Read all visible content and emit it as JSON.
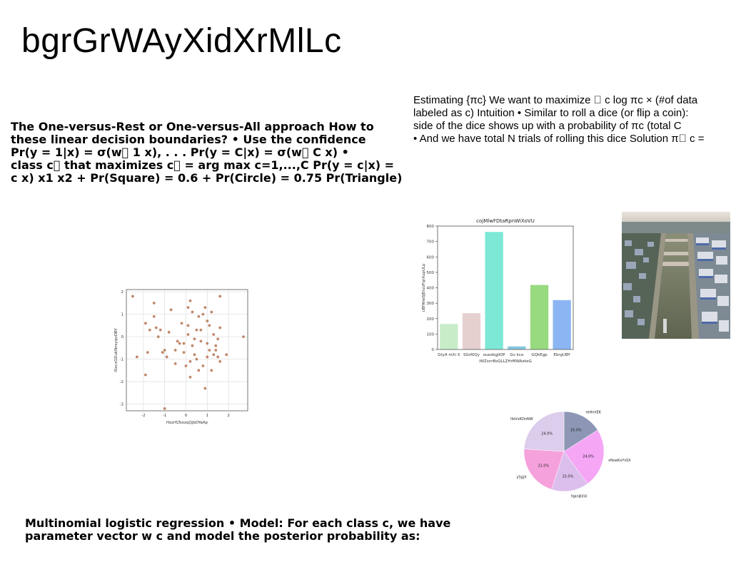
{
  "title": "bgrGrWAyXidXrMlLc",
  "left_block": {
    "lines": [
      "The One-versus-Rest or One-versus-All approach How to",
      "these linear decision boundaries? • Use the confidence",
      "Pr(y = 1|x) = σ(w⃞ 1 x), . . . Pr(y = C|x) = σ(w⃞ C x) •",
      "class c⃞ that maximizes c⃞ = arg max c=1,...,C Pr(y = c|x) =",
      "c x) x1 x2 + Pr(Square) = 0.6 + Pr(Circle) = 0.75 Pr(Triangle)"
    ]
  },
  "right_block": {
    "lines": [
      "Estimating {πc} We want to maximize ⃞ c log πc × (#of data",
      "labeled as c) Intuition • Similar to roll a dice (or flip a coin):",
      "side of the dice shows up with a probability of πc (total C",
      "• And we have total N trials of rolling this dice Solution π⃞ c ="
    ]
  },
  "bottom_block": {
    "lines": [
      "Multinomial logistic regression • Model: For each class c, we have",
      "parameter vector w c and model the posterior probability as:"
    ]
  },
  "chart_data": [
    {
      "type": "scatter",
      "xlabel": "HzzrfLTsozqQjbDYaAp",
      "ylabel": "lSecxGDukNnsyqvOBY",
      "xlim": [
        -2.8,
        2.9
      ],
      "ylim": [
        -3.3,
        2.1
      ],
      "xticks": [
        "-2",
        "-1",
        "0",
        "1",
        "2"
      ],
      "yticks": [
        "-3",
        "-2",
        "-1",
        "0",
        "1",
        "2"
      ],
      "grid": true,
      "color": "#c0876a",
      "points": [
        [
          -2.5,
          1.8
        ],
        [
          -2.3,
          -0.9
        ],
        [
          -1.9,
          -1.7
        ],
        [
          -1.9,
          0.6
        ],
        [
          -1.8,
          -0.7
        ],
        [
          -1.7,
          0.3
        ],
        [
          -1.5,
          1.5
        ],
        [
          -1.5,
          0.9
        ],
        [
          -1.4,
          0.4
        ],
        [
          -1.3,
          0.0
        ],
        [
          -1.2,
          0.3
        ],
        [
          -1.1,
          -0.7
        ],
        [
          -1.0,
          -0.6
        ],
        [
          -1.0,
          -3.2
        ],
        [
          -0.9,
          -0.9
        ],
        [
          -0.8,
          0.2
        ],
        [
          -0.7,
          1.2
        ],
        [
          -0.5,
          -0.6
        ],
        [
          -0.5,
          -1.2
        ],
        [
          -0.4,
          -0.2
        ],
        [
          -0.3,
          -0.3
        ],
        [
          -0.2,
          0.6
        ],
        [
          -0.1,
          -0.3
        ],
        [
          -0.1,
          -0.7
        ],
        [
          0.0,
          -1.3
        ],
        [
          0.1,
          1.3
        ],
        [
          0.1,
          0.5
        ],
        [
          0.1,
          0.1
        ],
        [
          0.2,
          -1.1
        ],
        [
          0.2,
          -1.8
        ],
        [
          0.2,
          1.6
        ],
        [
          0.3,
          1.1
        ],
        [
          0.3,
          -0.4
        ],
        [
          0.4,
          -0.1
        ],
        [
          0.4,
          -0.8
        ],
        [
          0.5,
          -1.0
        ],
        [
          0.5,
          0.3
        ],
        [
          0.6,
          -1.5
        ],
        [
          0.6,
          0.9
        ],
        [
          0.7,
          0.3
        ],
        [
          0.7,
          -0.2
        ],
        [
          0.8,
          1.0
        ],
        [
          0.8,
          -1.3
        ],
        [
          0.9,
          -2.3
        ],
        [
          0.9,
          1.3
        ],
        [
          1.0,
          -0.9
        ],
        [
          1.0,
          0.7
        ],
        [
          1.0,
          -0.3
        ],
        [
          1.1,
          0.5
        ],
        [
          1.1,
          -0.6
        ],
        [
          1.2,
          -1.5
        ],
        [
          1.2,
          1.1
        ],
        [
          1.3,
          0.1
        ],
        [
          1.3,
          -0.8
        ],
        [
          1.4,
          -0.6
        ],
        [
          1.4,
          -0.4
        ],
        [
          1.5,
          -0.1
        ],
        [
          1.5,
          -0.9
        ],
        [
          1.6,
          0.4
        ],
        [
          1.6,
          -1.1
        ],
        [
          1.6,
          1.8
        ],
        [
          2.7,
          0.0
        ],
        [
          1.9,
          -0.8
        ]
      ]
    },
    {
      "type": "bar",
      "title": "cojMlwFDtaRpnWiXoVU",
      "xlabel": "iWZsnrBsQLLZHrMWAzkeG",
      "ylabel": "cBYWwSJEnzzFqrXupULp",
      "ylim": [
        0,
        800
      ],
      "yticks": [
        "0",
        "100",
        "200",
        "300",
        "400",
        "500",
        "600",
        "700",
        "800"
      ],
      "categories": [
        "GtyA mXi X",
        "SGrRIQy",
        "ouezbgjIOP",
        "Gv kca",
        "GQkEgp",
        "EbrgUBY"
      ],
      "values": [
        165,
        235,
        762,
        20,
        418,
        320
      ],
      "colors": [
        "#c8ecc8",
        "#e6cfcf",
        "#7de8d6",
        "#86c8e0",
        "#98da80",
        "#8bb6f3"
      ]
    },
    {
      "type": "pie",
      "labels": [
        "reHmlEK",
        "xNueKxYsSX",
        "fqknBXVi",
        "ySgjX",
        "lfoVxKDnNW"
      ],
      "values": [
        16.0,
        24.0,
        15.0,
        21.0,
        24.0
      ],
      "pct_labels": [
        "16.0%",
        "24.0%",
        "15.0%",
        "21.0%",
        "24.0%"
      ],
      "colors": [
        "#8d97b5",
        "#f5a6f5",
        "#dcbeec",
        "#f5a2dc",
        "#dccdec"
      ]
    }
  ]
}
